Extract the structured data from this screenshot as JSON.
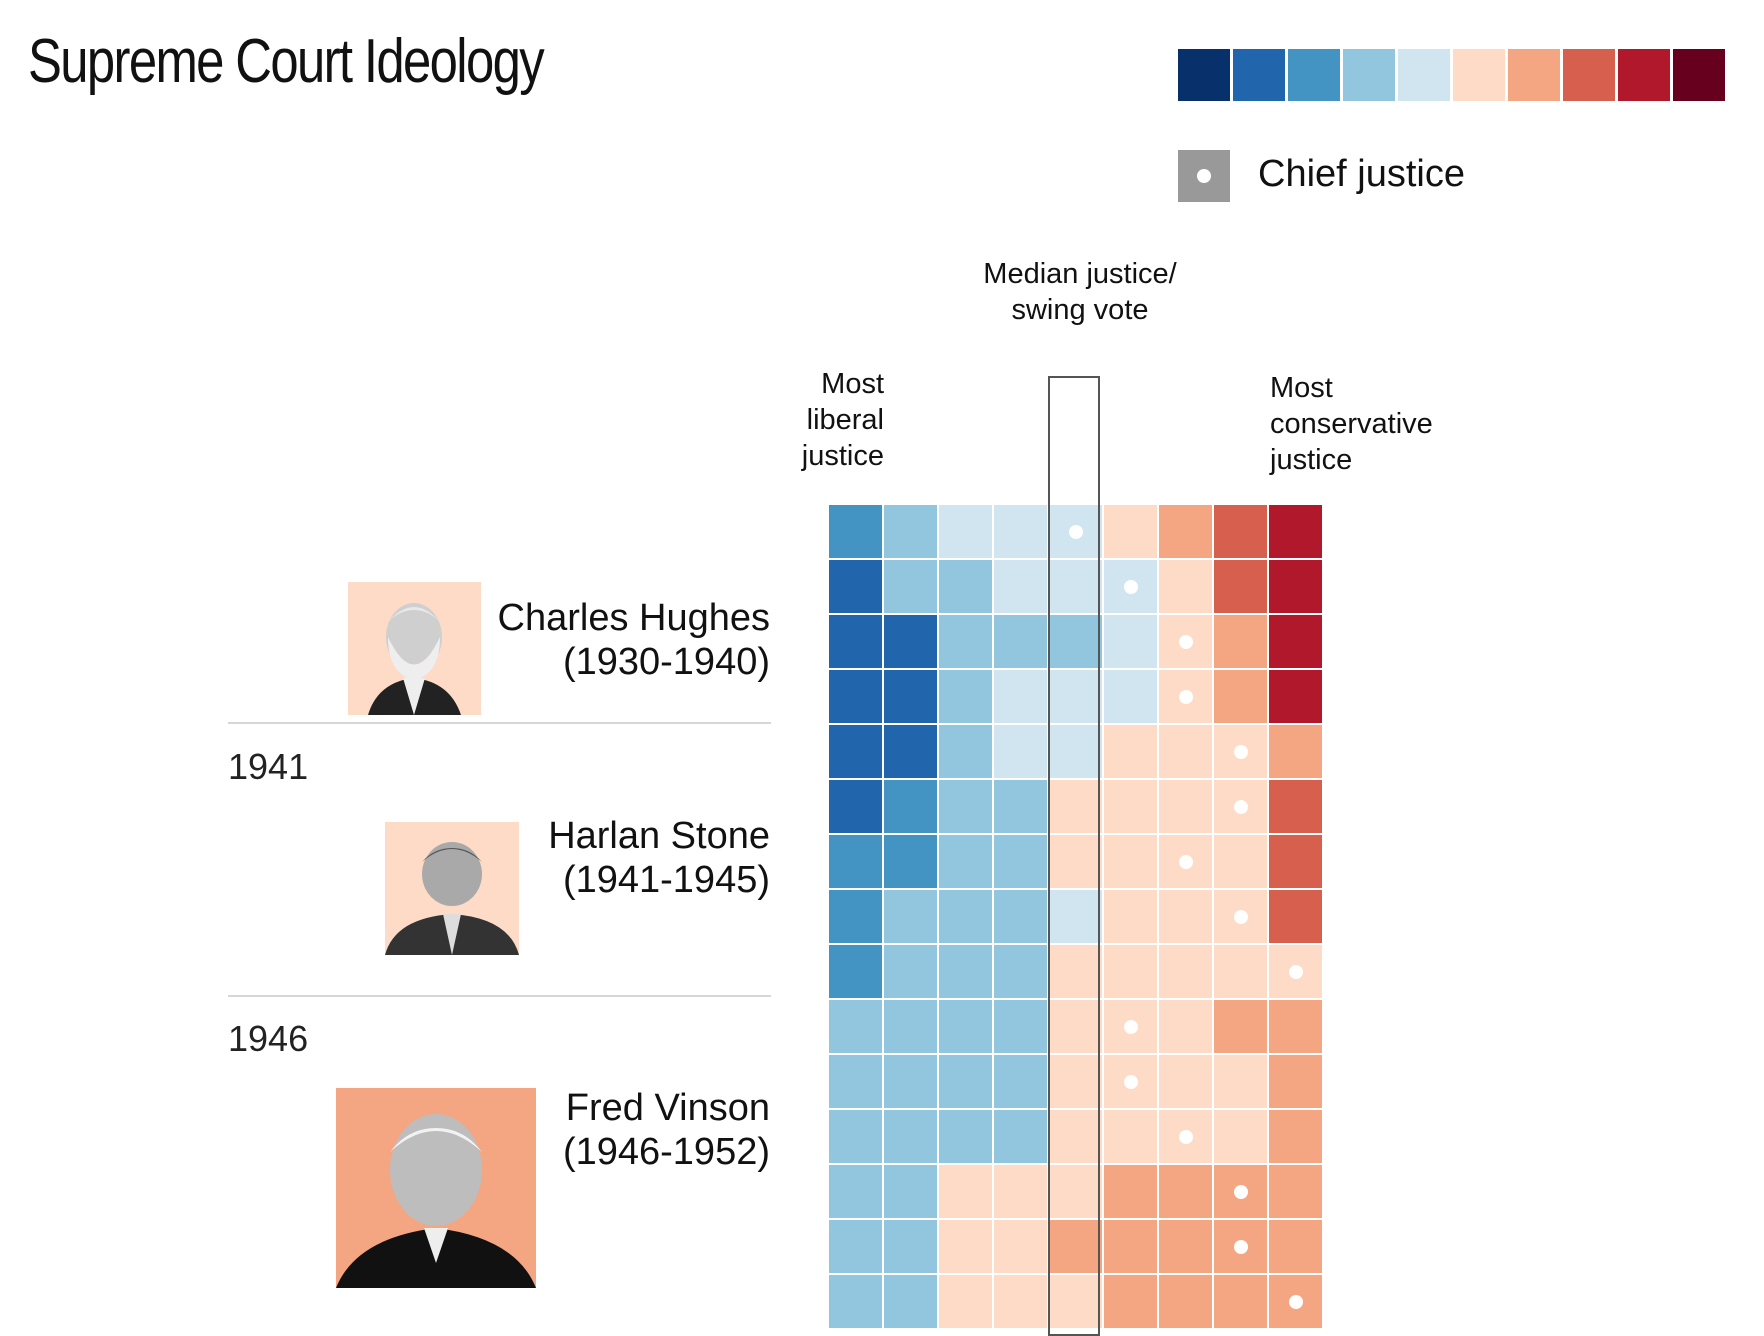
{
  "title": "Supreme Court Ideology",
  "legend": {
    "colors": [
      "#08306b",
      "#2166ac",
      "#4393c3",
      "#92c5de",
      "#d1e5f0",
      "#fddbc7",
      "#f4a582",
      "#d6604d",
      "#b2182b",
      "#67001f"
    ],
    "chief_label": "Chief justice",
    "chief_color": "#999999"
  },
  "annotations": {
    "median": "Median justice/ swing vote",
    "liberal": "Most liberal justice",
    "conservative": "Most conservative justice"
  },
  "eras": [
    {
      "name": "Charles Hughes",
      "years": "(1930-1940)",
      "year_marker": "",
      "portrait_bg": "#fddbc7"
    },
    {
      "name": "Harlan Stone",
      "years": "(1941-1945)",
      "year_marker": "1941",
      "portrait_bg": "#fddbc7"
    },
    {
      "name": "Fred Vinson",
      "years": "(1946-1952)",
      "year_marker": "1946",
      "portrait_bg": "#f4a582"
    }
  ],
  "chart_data": {
    "type": "heatmap",
    "description_scale": "Color index 0 (most liberal) to 9 (most conservative); columns ordered from most liberal to most conservative justice; dot marks the chief justice",
    "rows": [
      {
        "cells": [
          2,
          3,
          4,
          4,
          4,
          5,
          6,
          7,
          8
        ],
        "chief": 4
      },
      {
        "cells": [
          1,
          3,
          3,
          4,
          4,
          4,
          5,
          7,
          8
        ],
        "chief": 5
      },
      {
        "cells": [
          1,
          1,
          3,
          3,
          3,
          4,
          5,
          6,
          8
        ],
        "chief": 6
      },
      {
        "cells": [
          1,
          1,
          3,
          4,
          4,
          4,
          5,
          6,
          8
        ],
        "chief": 6
      },
      {
        "cells": [
          1,
          1,
          3,
          4,
          4,
          5,
          5,
          5,
          6
        ],
        "chief": 7
      },
      {
        "cells": [
          1,
          2,
          3,
          3,
          5,
          5,
          5,
          5,
          7
        ],
        "chief": 7
      },
      {
        "cells": [
          2,
          2,
          3,
          3,
          5,
          5,
          5,
          5,
          7
        ],
        "chief": 6
      },
      {
        "cells": [
          2,
          3,
          3,
          3,
          4,
          5,
          5,
          5,
          7
        ],
        "chief": 7
      },
      {
        "cells": [
          2,
          3,
          3,
          3,
          5,
          5,
          5,
          5,
          5
        ],
        "chief": 8
      },
      {
        "cells": [
          3,
          3,
          3,
          3,
          5,
          5,
          5,
          6,
          6
        ],
        "chief": 5
      },
      {
        "cells": [
          3,
          3,
          3,
          3,
          5,
          5,
          5,
          5,
          6
        ],
        "chief": 5
      },
      {
        "cells": [
          3,
          3,
          3,
          3,
          5,
          5,
          5,
          5,
          6
        ],
        "chief": 6
      },
      {
        "cells": [
          3,
          3,
          5,
          5,
          5,
          6,
          6,
          6,
          6
        ],
        "chief": 7
      },
      {
        "cells": [
          3,
          3,
          5,
          5,
          6,
          6,
          6,
          6,
          6
        ],
        "chief": 7
      },
      {
        "cells": [
          3,
          3,
          5,
          5,
          5,
          6,
          6,
          6,
          6
        ],
        "chief": 8
      }
    ],
    "median_column": 4
  }
}
